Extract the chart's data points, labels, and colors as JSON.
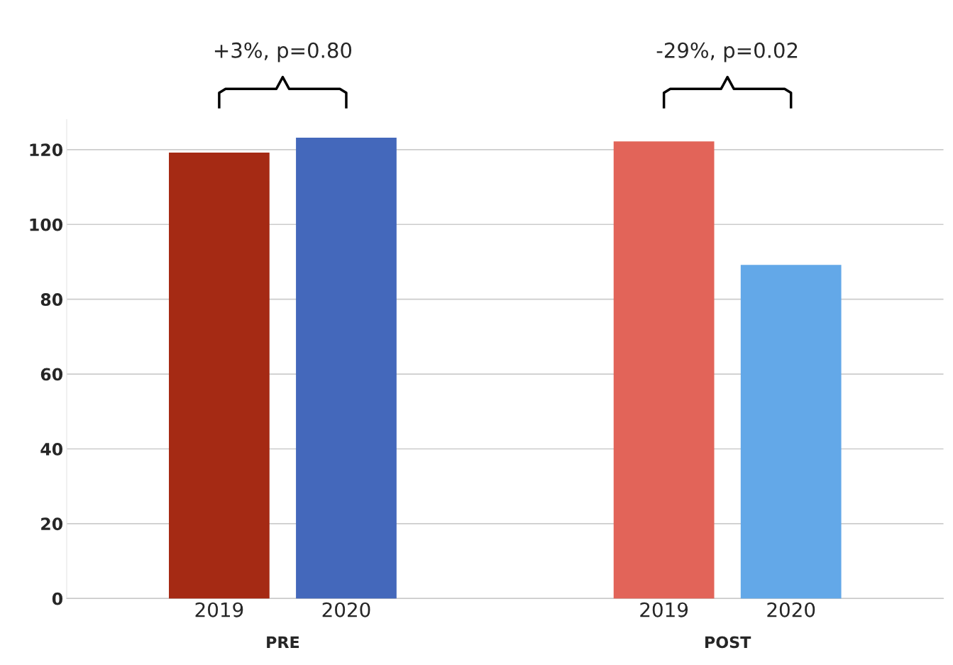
{
  "chart_data": {
    "type": "bar",
    "categories": [
      "2019",
      "2020",
      "2019",
      "2020"
    ],
    "values": [
      119,
      123,
      122,
      89
    ],
    "colors": [
      "#a52a14",
      "#4468bb",
      "#e26459",
      "#63a8e8"
    ],
    "ylim": [
      0,
      128
    ],
    "yticks": [
      0,
      20,
      40,
      60,
      80,
      100,
      120
    ],
    "grid": "y",
    "annotations": [
      "+3%, p=0.80",
      "-29%, p=0.02",
      "PRE",
      "POST"
    ]
  }
}
